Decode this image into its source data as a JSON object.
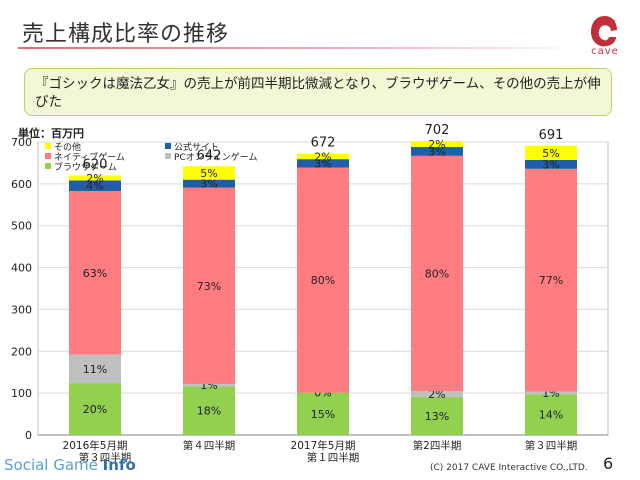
{
  "slide": {
    "title": "売上構成比率の推移",
    "note": "『ゴシックは魔法乙女』の売上が前四半期比微減となり、ブラウザゲーム、その他の売上が伸びた",
    "unit": "単位：百万円",
    "logo_text": "cave",
    "footer_brand_a": "Social Game ",
    "footer_brand_b": "Info",
    "copyright": "(C) 2017 CAVE Interactive CO.,LTD.",
    "page_number": "6"
  },
  "colors": {
    "browser": "#92d050",
    "pc_online": "#bfbfbf",
    "native": "#ff7c80",
    "official": "#1f5fa8",
    "other": "#ffff00",
    "accent": "#c0303a"
  },
  "chart_data": {
    "type": "bar",
    "stacked": true,
    "ylim": [
      0,
      700
    ],
    "yticks": [
      0,
      100,
      200,
      300,
      400,
      500,
      600,
      700
    ],
    "grid": true,
    "legend_position": "top-left",
    "categories": [
      [
        "2016年5月期",
        "第３四半期"
      ],
      [
        "第４四半期"
      ],
      [
        "2017年5月期",
        "第１四半期"
      ],
      [
        "第2四半期"
      ],
      [
        "第３四半期"
      ]
    ],
    "totals": [
      620,
      642,
      672,
      702,
      691
    ],
    "series": [
      {
        "name": "ブラウザゲーム",
        "key": "browser",
        "values": [
          124,
          116,
          101,
          91,
          97
        ],
        "labels": [
          "20%",
          "18%",
          "15%",
          "13%",
          "14%"
        ]
      },
      {
        "name": "PCオンラインゲーム",
        "key": "pc_online",
        "values": [
          68,
          6,
          0,
          14,
          7
        ],
        "labels": [
          "11%",
          "1%",
          "0%",
          "2%",
          "1%"
        ]
      },
      {
        "name": "ネイティブゲーム",
        "key": "native",
        "values": [
          391,
          469,
          538,
          562,
          532
        ],
        "labels": [
          "63%",
          "73%",
          "80%",
          "80%",
          "77%"
        ]
      },
      {
        "name": "公式サイト",
        "key": "official",
        "values": [
          25,
          19,
          20,
          21,
          21
        ],
        "labels": [
          "4%",
          "3%",
          "3%",
          "3%",
          "3%"
        ]
      },
      {
        "name": "その他",
        "key": "other",
        "values": [
          12,
          32,
          13,
          14,
          34
        ],
        "labels": [
          "2%",
          "5%",
          "2%",
          "2%",
          "5%"
        ]
      }
    ],
    "legend_order": [
      {
        "key": "other",
        "name": "その他"
      },
      {
        "key": "official",
        "name": "公式サイト"
      },
      {
        "key": "native",
        "name": "ネイティブゲーム"
      },
      {
        "key": "pc_online",
        "name": "PCオンラインゲーム"
      },
      {
        "key": "browser",
        "name": "ブラウザゲーム"
      }
    ]
  }
}
